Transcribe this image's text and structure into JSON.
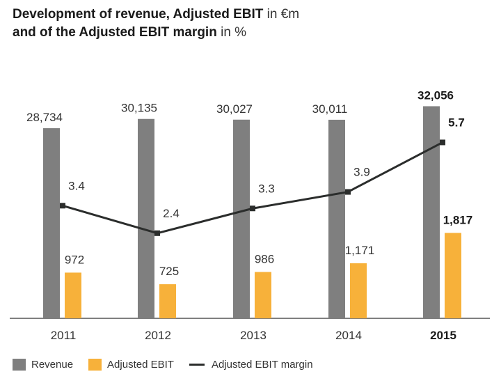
{
  "title": {
    "line1_bold": "Development of revenue, Adjusted EBIT",
    "line1_unit": " in €m",
    "line2_bold": "and of the Adjusted EBIT margin",
    "line2_unit": " in %"
  },
  "colors": {
    "revenue": "#7f7f7f",
    "ebit": "#f7b13a",
    "margin": "#2b2d2c",
    "axis": "#555555"
  },
  "chart_data": {
    "type": "bar+line",
    "categories": [
      "2011",
      "2012",
      "2013",
      "2014",
      "2015"
    ],
    "highlight_category": "2015",
    "series": [
      {
        "name": "Revenue",
        "type": "bar",
        "values": [
          28734,
          30135,
          30027,
          30011,
          32056
        ],
        "labels": [
          "28,734",
          "30,135",
          "30,027",
          "30,011",
          "32,056"
        ]
      },
      {
        "name": "Adjusted EBIT",
        "type": "bar",
        "values": [
          972,
          725,
          986,
          1171,
          1817
        ],
        "labels": [
          "972",
          "725",
          "986",
          "1,171",
          "1,817"
        ]
      },
      {
        "name": "Adjusted EBIT margin",
        "type": "line",
        "values": [
          3.4,
          2.4,
          3.3,
          3.9,
          5.7
        ],
        "labels": [
          "3.4",
          "2.4",
          "3.3",
          "3.9",
          "5.7"
        ]
      }
    ],
    "grid": false
  },
  "legend": {
    "revenue": "Revenue",
    "ebit": "Adjusted EBIT",
    "margin": "Adjusted EBIT margin"
  }
}
